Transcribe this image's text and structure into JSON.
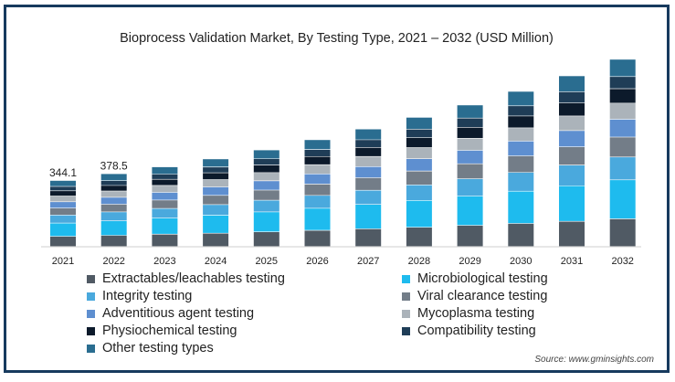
{
  "chart_data": {
    "type": "bar",
    "stacked": true,
    "title": "Bioprocess Validation Market, By Testing Type, 2021 – 2032 (USD Million)",
    "xlabel": "",
    "ylabel": "",
    "categories": [
      "2021",
      "2022",
      "2023",
      "2024",
      "2025",
      "2026",
      "2027",
      "2028",
      "2029",
      "2030",
      "2031",
      "2032"
    ],
    "totals": [
      344.1,
      378.5,
      null,
      null,
      null,
      null,
      null,
      null,
      null,
      null,
      null,
      null
    ],
    "total_labels": [
      "344.1",
      "378.5",
      "",
      "",
      "",
      "",
      "",
      "",
      "",
      "",
      "",
      ""
    ],
    "series": [
      {
        "name": "Extractables/leachables testing",
        "color": "#505a64",
        "values": [
          53,
          58,
          64,
          69,
          76,
          84,
          92,
          100,
          110,
          120,
          131,
          144
        ]
      },
      {
        "name": "Microbiological testing",
        "color": "#1ebbee",
        "values": [
          69,
          76,
          84,
          94,
          104,
          115,
          127,
          140,
          153,
          168,
          185,
          203
        ]
      },
      {
        "name": "Integrity testing",
        "color": "#4aa9dd",
        "values": [
          42,
          46,
          50,
          55,
          61,
          67,
          74,
          81,
          90,
          98,
          108,
          119
        ]
      },
      {
        "name": "Viral clearance testing",
        "color": "#737d88",
        "values": [
          36,
          40,
          44,
          48,
          53,
          59,
          65,
          72,
          78,
          86,
          95,
          104
        ]
      },
      {
        "name": "Adventitious agent testing",
        "color": "#5e8fd0",
        "values": [
          33,
          36,
          40,
          44,
          48,
          53,
          58,
          64,
          70,
          77,
          85,
          93
        ]
      },
      {
        "name": "Mycoplasma testing",
        "color": "#abb3ba",
        "values": [
          30,
          33,
          36,
          39,
          43,
          48,
          53,
          58,
          63,
          69,
          76,
          84
        ]
      },
      {
        "name": "Physiochemical testing",
        "color": "#0c1a2b",
        "values": [
          27,
          29,
          32,
          35,
          39,
          43,
          47,
          52,
          57,
          62,
          68,
          75
        ]
      },
      {
        "name": "Compatibility testing",
        "color": "#1f3d57",
        "values": [
          23,
          25,
          27,
          30,
          33,
          36,
          40,
          44,
          48,
          53,
          58,
          63
        ]
      },
      {
        "name": "Other testing types",
        "color": "#2a6d90",
        "values": [
          31,
          36,
          38,
          42,
          46,
          51,
          56,
          62,
          68,
          75,
          83,
          90
        ]
      }
    ],
    "ylim": [
      0,
      1000
    ],
    "grid": false,
    "legend_position": "bottom"
  },
  "source": "Source: www.gminsights.com"
}
